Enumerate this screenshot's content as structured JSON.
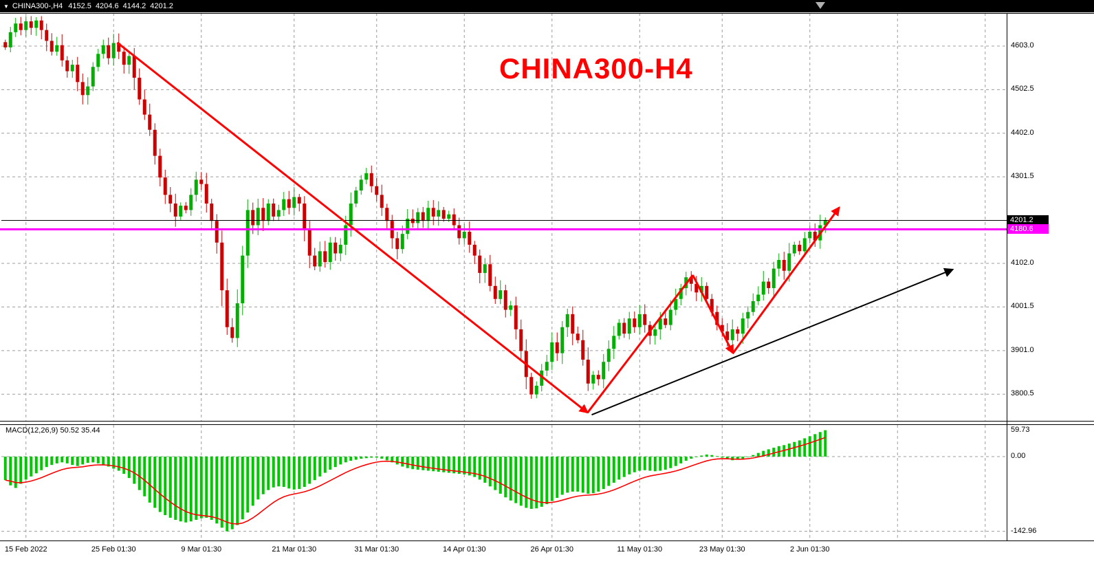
{
  "title_bar": {
    "dropdown_icon": "▼",
    "symbol_period": "CHINA300-,H4",
    "open": "4152.5",
    "high": "4204.6",
    "low": "4144.2",
    "close": "4201.2"
  },
  "main_chart": {
    "title": "CHINA300-H4",
    "price_badge": "4201.2",
    "hline_badge": "4180.6"
  },
  "macd_panel": {
    "label": "MACD(12,26,9) 50.52 35.44",
    "macd_value": "50.52",
    "signal_value": "35.44"
  },
  "chart_data": {
    "type": "candlestick",
    "symbol": "CHINA300-",
    "timeframe": "H4",
    "title": "CHINA300-H4",
    "price_axis_labels": [
      "4603.0",
      "4502.5",
      "4402.0",
      "4301.5",
      "4102.0",
      "4001.5",
      "3901.0",
      "3800.5"
    ],
    "current_price": 4201.2,
    "horizontal_line": 4180.6,
    "first_open": 4612,
    "closes": [
      4600,
      4635,
      4655,
      4640,
      4660,
      4645,
      4662,
      4640,
      4615,
      4590,
      4605,
      4570,
      4545,
      4560,
      4520,
      4490,
      4510,
      4555,
      4585,
      4605,
      4575,
      4610,
      4590,
      4560,
      4580,
      4530,
      4480,
      4445,
      4410,
      4350,
      4300,
      4260,
      4240,
      4210,
      4235,
      4225,
      4260,
      4295,
      4285,
      4240,
      4200,
      4150,
      4040,
      3955,
      3930,
      4010,
      4120,
      4225,
      4190,
      4230,
      4200,
      4240,
      4210,
      4225,
      4250,
      4230,
      4255,
      4240,
      4180,
      4120,
      4095,
      4130,
      4105,
      4150,
      4125,
      4145,
      4190,
      4240,
      4270,
      4295,
      4310,
      4280,
      4260,
      4230,
      4200,
      4160,
      4135,
      4170,
      4205,
      4195,
      4220,
      4200,
      4230,
      4210,
      4225,
      4205,
      4215,
      4190,
      4160,
      4175,
      4145,
      4120,
      4080,
      4100,
      4050,
      4020,
      4040,
      3995,
      4005,
      3950,
      3900,
      3840,
      3800,
      3820,
      3855,
      3875,
      3920,
      3895,
      3955,
      3985,
      3940,
      3925,
      3880,
      3825,
      3845,
      3835,
      3875,
      3905,
      3935,
      3965,
      3940,
      3975,
      3955,
      3985,
      3960,
      3935,
      3950,
      3975,
      3960,
      3995,
      4020,
      4045,
      4070,
      4055,
      4035,
      4050,
      4020,
      3990,
      3960,
      3945,
      3925,
      3950,
      3940,
      3975,
      3990,
      4015,
      4030,
      4060,
      4045,
      4090,
      4110,
      4085,
      4125,
      4145,
      4130,
      4160,
      4175,
      4155,
      4190,
      4201.2
    ],
    "time_ticks": [
      {
        "label": "15 Feb 2022",
        "i": 4
      },
      {
        "label": "25 Feb 01:30",
        "i": 21
      },
      {
        "label": "9 Mar 01:30",
        "i": 38
      },
      {
        "label": "21 Mar 01:30",
        "i": 56
      },
      {
        "label": "31 Mar 01:30",
        "i": 72
      },
      {
        "label": "14 Apr 01:30",
        "i": 89
      },
      {
        "label": "26 Apr 01:30",
        "i": 106
      },
      {
        "label": "11 May 01:30",
        "i": 123
      },
      {
        "label": "23 May 01:30",
        "i": 139
      },
      {
        "label": "2 Jun 01:30",
        "i": 156
      }
    ],
    "grid_only_ticks": [
      173,
      190
    ],
    "macd": {
      "params": "12,26,9",
      "signal_period": 9,
      "axis_labels": [
        "59.73",
        "0.00",
        "-142.96"
      ],
      "values": [
        -45,
        -55,
        -60,
        -52,
        -44,
        -38,
        -32,
        -26,
        -20,
        -16,
        -13,
        -11,
        -13,
        -16,
        -18,
        -15,
        -12,
        -11,
        -13,
        -16,
        -19,
        -23,
        -27,
        -33,
        -41,
        -52,
        -64,
        -76,
        -88,
        -98,
        -106,
        -112,
        -117,
        -121,
        -124,
        -126,
        -124,
        -121,
        -118,
        -117,
        -121,
        -128,
        -136,
        -143,
        -139,
        -131,
        -120,
        -107,
        -94,
        -82,
        -72,
        -64,
        -59,
        -57,
        -58,
        -61,
        -63,
        -62,
        -58,
        -52,
        -45,
        -38,
        -31,
        -25,
        -20,
        -15,
        -11,
        -8,
        -6,
        -4,
        -3,
        -2,
        -2,
        -4,
        -7,
        -11,
        -15,
        -19,
        -22,
        -24,
        -25,
        -26,
        -27,
        -28,
        -29,
        -30,
        -31,
        -32,
        -33,
        -34,
        -36,
        -39,
        -44,
        -50,
        -57,
        -64,
        -71,
        -78,
        -84,
        -89,
        -94,
        -98,
        -100,
        -99,
        -96,
        -91,
        -85,
        -79,
        -73,
        -69,
        -67,
        -67,
        -69,
        -71,
        -70,
        -67,
        -62,
        -56,
        -50,
        -44,
        -39,
        -34,
        -30,
        -27,
        -26,
        -27,
        -28,
        -27,
        -25,
        -22,
        -18,
        -13,
        -8,
        -4,
        -1,
        2,
        4,
        3,
        1,
        -2,
        -5,
        -7,
        -6,
        -4,
        -1,
        3,
        7,
        11,
        14,
        17,
        20,
        22,
        25,
        28,
        31,
        35,
        39,
        43,
        47,
        50.52
      ]
    },
    "annotations": {
      "red_trend_lines": [
        {
          "from_i": 21.7,
          "from_p": 4611,
          "to_i": 112.9,
          "to_p": 3758,
          "arrow_end": true
        },
        {
          "from_i": 112.9,
          "from_p": 3758,
          "to_i": 133.3,
          "to_p": 4075,
          "arrow_end": false
        },
        {
          "from_i": 133.3,
          "from_p": 4075,
          "to_i": 141.1,
          "to_p": 3895,
          "arrow_end": true
        },
        {
          "from_i": 141.1,
          "from_p": 3895,
          "to_i": 161.7,
          "to_p": 4231,
          "arrow_end": true
        }
      ],
      "black_trend_arrow": {
        "from_i": 113.7,
        "from_p": 3753,
        "to_i": 183.7,
        "to_p": 4088
      }
    },
    "colors": {
      "bull": "#00AF00",
      "bear": "#CC0000",
      "macd_hist": "#00C800",
      "macd_signal": "#FF0000",
      "hline": "#FF00FF",
      "current_price_line": "#000000",
      "grid": "#9C9C9C",
      "title_red": "#FF0000"
    }
  }
}
